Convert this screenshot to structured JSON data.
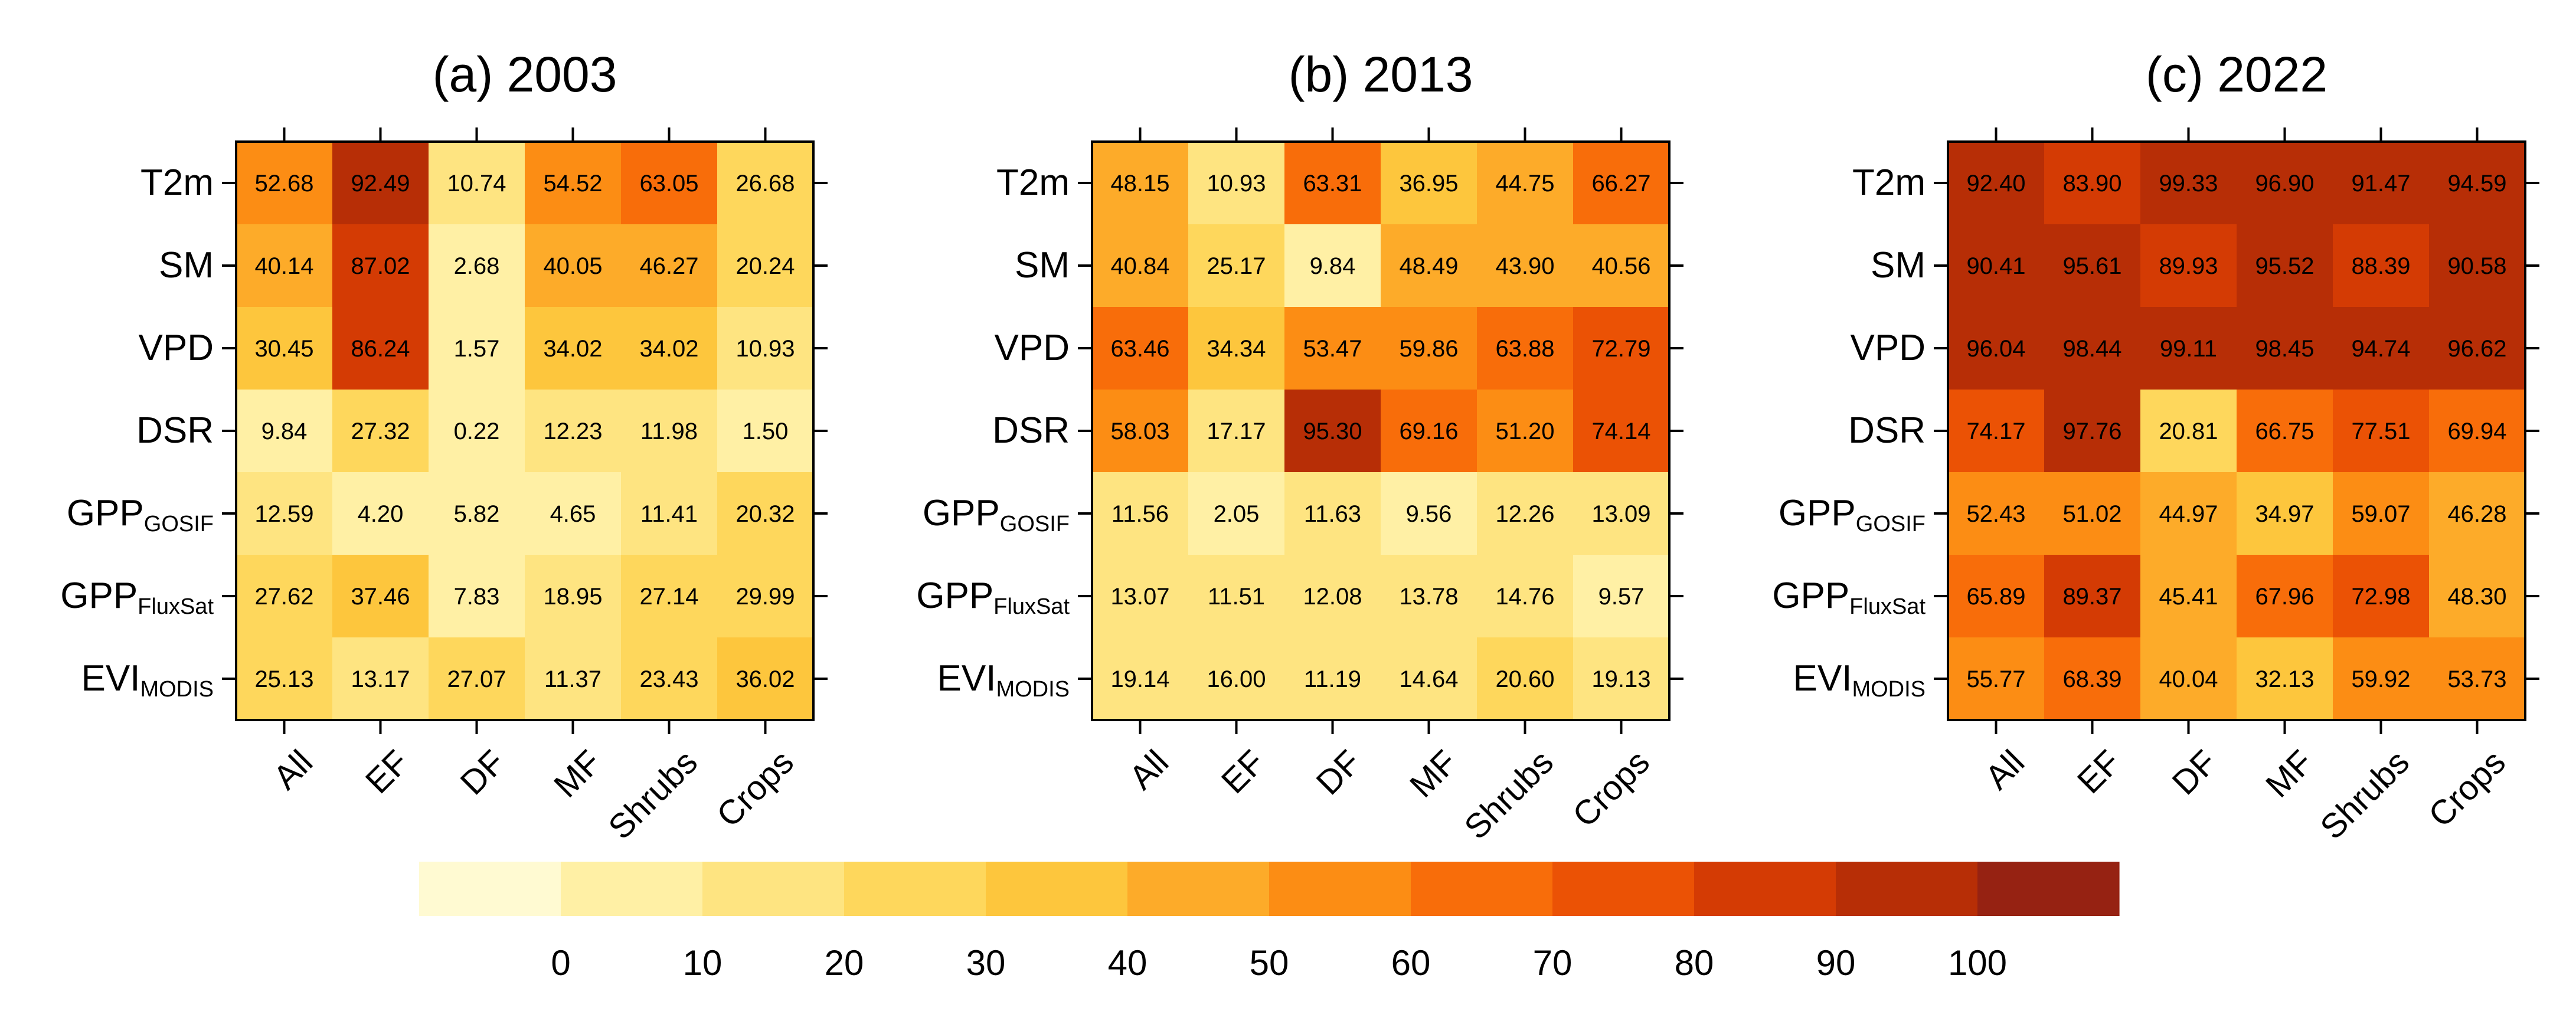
{
  "chart_data": {
    "type": "heatmap",
    "colorbar": {
      "ticks": [
        "0",
        "10",
        "20",
        "30",
        "40",
        "50",
        "60",
        "70",
        "80",
        "90",
        "100"
      ],
      "bins": [
        "#FFFAD2",
        "#FFF0A5",
        "#FEE481",
        "#FED75C",
        "#FDC63D",
        "#FDAB29",
        "#FC8D14",
        "#F86D0A",
        "#EB5205",
        "#D43B04",
        "#B72E06",
        "#962212"
      ]
    },
    "panels": [
      {
        "title": "(a) 2003",
        "rows": [
          {
            "label": "T2m",
            "sub": ""
          },
          {
            "label": "SM",
            "sub": ""
          },
          {
            "label": "VPD",
            "sub": ""
          },
          {
            "label": "DSR",
            "sub": ""
          },
          {
            "label": "GPP",
            "sub": "GOSIF"
          },
          {
            "label": "GPP",
            "sub": "FluxSat"
          },
          {
            "label": "EVI",
            "sub": "MODIS"
          }
        ],
        "columns": [
          "All",
          "EF",
          "DF",
          "MF",
          "Shrubs",
          "Crops"
        ],
        "values": [
          [
            52.68,
            92.49,
            10.74,
            54.52,
            63.05,
            26.68
          ],
          [
            40.14,
            87.02,
            2.68,
            40.05,
            46.27,
            20.24
          ],
          [
            30.45,
            86.24,
            1.57,
            34.02,
            34.02,
            10.93
          ],
          [
            9.84,
            27.32,
            0.22,
            12.23,
            11.98,
            1.5
          ],
          [
            12.59,
            4.2,
            5.82,
            4.65,
            11.41,
            20.32
          ],
          [
            27.62,
            37.46,
            7.83,
            18.95,
            27.14,
            29.99
          ],
          [
            25.13,
            13.17,
            27.07,
            11.37,
            23.43,
            36.02
          ]
        ]
      },
      {
        "title": "(b) 2013",
        "rows": [
          {
            "label": "T2m",
            "sub": ""
          },
          {
            "label": "SM",
            "sub": ""
          },
          {
            "label": "VPD",
            "sub": ""
          },
          {
            "label": "DSR",
            "sub": ""
          },
          {
            "label": "GPP",
            "sub": "GOSIF"
          },
          {
            "label": "GPP",
            "sub": "FluxSat"
          },
          {
            "label": "EVI",
            "sub": "MODIS"
          }
        ],
        "columns": [
          "All",
          "EF",
          "DF",
          "MF",
          "Shrubs",
          "Crops"
        ],
        "values": [
          [
            48.15,
            10.93,
            63.31,
            36.95,
            44.75,
            66.27
          ],
          [
            40.84,
            25.17,
            9.84,
            48.49,
            43.9,
            40.56
          ],
          [
            63.46,
            34.34,
            53.47,
            59.86,
            63.88,
            72.79
          ],
          [
            58.03,
            17.17,
            95.3,
            69.16,
            51.2,
            74.14
          ],
          [
            11.56,
            2.05,
            11.63,
            9.56,
            12.26,
            13.09
          ],
          [
            13.07,
            11.51,
            12.08,
            13.78,
            14.76,
            9.57
          ],
          [
            19.14,
            16.0,
            11.19,
            14.64,
            20.6,
            19.13
          ]
        ]
      },
      {
        "title": "(c) 2022",
        "rows": [
          {
            "label": "T2m",
            "sub": ""
          },
          {
            "label": "SM",
            "sub": ""
          },
          {
            "label": "VPD",
            "sub": ""
          },
          {
            "label": "DSR",
            "sub": ""
          },
          {
            "label": "GPP",
            "sub": "GOSIF"
          },
          {
            "label": "GPP",
            "sub": "FluxSat"
          },
          {
            "label": "EVI",
            "sub": "MODIS"
          }
        ],
        "columns": [
          "All",
          "EF",
          "DF",
          "MF",
          "Shrubs",
          "Crops"
        ],
        "values": [
          [
            92.4,
            83.9,
            99.33,
            96.9,
            91.47,
            94.59
          ],
          [
            90.41,
            95.61,
            89.93,
            95.52,
            88.39,
            90.58
          ],
          [
            96.04,
            98.44,
            99.11,
            98.45,
            94.74,
            96.62
          ],
          [
            74.17,
            97.76,
            20.81,
            66.75,
            77.51,
            69.94
          ],
          [
            52.43,
            51.02,
            44.97,
            34.97,
            59.07,
            46.28
          ],
          [
            65.89,
            89.37,
            45.41,
            67.96,
            72.98,
            48.3
          ],
          [
            55.77,
            68.39,
            40.04,
            32.13,
            59.92,
            53.73
          ]
        ]
      }
    ]
  }
}
